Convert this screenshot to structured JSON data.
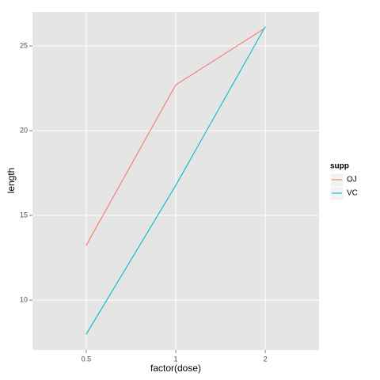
{
  "chart_data": {
    "type": "line",
    "x_label": "factor(dose)",
    "y_label": "length",
    "categories": [
      "0.5",
      "1",
      "2"
    ],
    "series": [
      {
        "name": "OJ",
        "color": "#F8766D",
        "values": [
          13.23,
          22.7,
          26.06
        ]
      },
      {
        "name": "VC",
        "color": "#00BFC4",
        "values": [
          7.98,
          16.77,
          26.14
        ]
      }
    ],
    "ylim": [
      7.06,
      27.01
    ],
    "yticks": [
      10,
      15,
      20,
      25
    ],
    "grid": true,
    "legend_title": "supp",
    "legend_position": "right"
  }
}
